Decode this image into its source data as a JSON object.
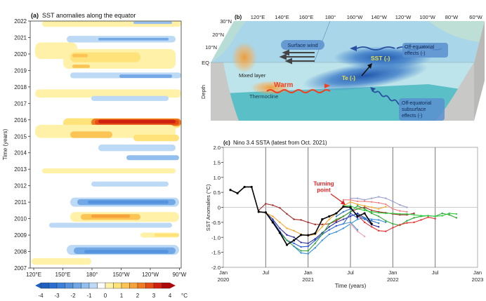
{
  "panel_a": {
    "title_tag": "(a)",
    "title": "SST anomalies along the equator",
    "ylabel": "Time (years)",
    "yticks": [
      "2022",
      "2021",
      "2020",
      "2019",
      "2018",
      "2017",
      "2016",
      "2015",
      "2014",
      "2013",
      "2012",
      "2011",
      "2010",
      "2009",
      "2008",
      "2007"
    ],
    "xticks": [
      "120°E",
      "150°E",
      "180°",
      "150°W",
      "120°W",
      "90°W"
    ],
    "colorbar": {
      "ticks": [
        "-4",
        "-3",
        "-2",
        "-1",
        "0",
        "1",
        "2",
        "3",
        "4"
      ],
      "unit": "°C",
      "colors": [
        "#1f5fbf",
        "#2a6fcf",
        "#3b80d9",
        "#5593df",
        "#72a8e6",
        "#93bfee",
        "#bcd9f5",
        "#ffffff",
        "#fff2a8",
        "#ffe27a",
        "#fcc455",
        "#f6a23a",
        "#ef7a22",
        "#e44d16",
        "#cf220e",
        "#b00808"
      ]
    }
  },
  "panel_b": {
    "title_tag": "(b)",
    "lon_labels": [
      "120°E",
      "140°E",
      "160°E",
      "180°",
      "160°W",
      "140°W",
      "120°W",
      "100°W",
      "80°W",
      "60°W"
    ],
    "lat_labels": [
      "30°N",
      "20°N",
      "10°N",
      "EQ"
    ],
    "depth_label": "Depth",
    "surface_wind": "Surface wind",
    "sst": "SST (-)",
    "off_eq_surface": [
      "Off-equatorial",
      "effects (-)"
    ],
    "mixed_layer": "Mixed layer",
    "warm": "Warm",
    "thermocline": "Thermocline",
    "te": "Te (-)",
    "off_eq_subsurface": [
      "Off-equatorial",
      "subsurface",
      "effects (-)"
    ],
    "colors": {
      "ocean_surface": "#a9d6e8",
      "ocean_body": "#5bbfc8",
      "land": "#c8c8c6",
      "cold": "#1a5fb4",
      "warm": "#f0a040",
      "label_box": "#5b8fcf"
    }
  },
  "chart_data": {
    "type": "line",
    "title_tag": "(c)",
    "title": "Nino 3.4 SSTA (latest from Oct. 2021)",
    "xlabel": "Time (years)",
    "ylabel": "SST Anomalies (°C)",
    "ylim": [
      -2.0,
      2.0
    ],
    "yticks": [
      "2.0",
      "1.5",
      "1.0",
      "0.5",
      "0",
      "-0.5",
      "-1.0",
      "-1.5",
      "-2.0"
    ],
    "xticks": [
      {
        "m": 0,
        "l1": "Jan",
        "l2": "2020"
      },
      {
        "m": 6,
        "l1": "Jul",
        "l2": ""
      },
      {
        "m": 12,
        "l1": "Jan",
        "l2": "2021"
      },
      {
        "m": 18,
        "l1": "Jul",
        "l2": ""
      },
      {
        "m": 24,
        "l1": "Jan",
        "l2": "2022"
      },
      {
        "m": 30,
        "l1": "Jul",
        "l2": ""
      },
      {
        "m": 36,
        "l1": "Jan",
        "l2": "2023"
      }
    ],
    "x_unit": "months since Jan 2020",
    "annotation": {
      "text": [
        "Turning",
        "point"
      ],
      "m": 17.4,
      "v": 0.05
    },
    "grid": "vertical lines at Jul/Jan; horizontal line at 0",
    "series": [
      {
        "name": "observed",
        "color": "#000000",
        "start": 1,
        "values": [
          0.58,
          0.47,
          0.68,
          0.68,
          -0.15,
          -0.17,
          -0.5,
          -0.85,
          -1.25,
          -1.1,
          -0.92,
          -0.93,
          -0.87,
          -0.4,
          -0.3,
          -0.2,
          0.02,
          0.0,
          -0.3,
          -0.2,
          -0.55
        ]
      },
      {
        "name": "fc-a",
        "color": "#a52a2a",
        "start": 5,
        "values": [
          -0.1,
          0.12,
          0.07,
          -0.02,
          -0.22,
          -0.4,
          -0.42,
          -0.5,
          -0.57,
          -0.57,
          -0.55,
          -0.45,
          -0.3,
          -0.15,
          -0.05,
          0.0,
          -0.1,
          -0.15,
          -0.18,
          -0.22,
          -0.25,
          -0.25,
          -0.2
        ]
      },
      {
        "name": "fc-b",
        "color": "#f4a830",
        "start": 5,
        "values": [
          -0.15,
          -0.18,
          -0.3,
          -0.5,
          -0.7,
          -0.78,
          -0.9,
          -0.95,
          -0.9,
          -0.65,
          -0.4,
          -0.2,
          0.05,
          0.18,
          0.1,
          0.05,
          0.0,
          -0.05,
          0.02
        ]
      },
      {
        "name": "fc-c",
        "color": "#3030a0",
        "start": 6,
        "values": [
          -0.17,
          -0.4,
          -0.7,
          -0.92,
          -1.0,
          -1.17,
          -1.2,
          -1.05,
          -0.85,
          -0.65,
          -0.5,
          -0.4,
          -0.3,
          -0.2,
          -0.35,
          -0.58,
          -0.65
        ]
      },
      {
        "name": "fc-d",
        "color": "#2a5ad8",
        "start": 7,
        "values": [
          -0.45,
          -0.8,
          -1.1,
          -1.2,
          -1.32,
          -1.3,
          -1.1,
          -0.9,
          -0.75,
          -0.62,
          -0.55,
          -0.2,
          -0.35
        ]
      },
      {
        "name": "fc-e",
        "color": "#31a836",
        "start": 8,
        "values": [
          -0.85,
          -1.1,
          -1.3,
          -1.45,
          -1.45,
          -1.2,
          -0.9,
          -0.55,
          -0.4,
          -0.3,
          -0.15,
          0.05,
          -0.05,
          -0.2,
          -0.3,
          -0.45,
          -0.55,
          -0.6,
          -0.45,
          -0.35,
          -0.3,
          -0.28,
          -0.3,
          -0.2,
          -0.25,
          -0.35
        ]
      },
      {
        "name": "fc-f",
        "color": "#3a8fe0",
        "start": 10,
        "values": [
          -1.3,
          -1.52,
          -1.55,
          -1.35,
          -1.1,
          -0.9,
          -0.82,
          -0.7,
          -0.55,
          -0.4,
          -0.35,
          -0.4,
          -0.42,
          -0.5
        ]
      },
      {
        "name": "fc-g",
        "color": "#e83030",
        "start": 19,
        "values": [
          -0.25,
          -0.5,
          -0.65,
          -0.78,
          -0.8,
          -0.68,
          -0.58,
          -0.52,
          -0.5,
          -0.42,
          -0.33,
          -0.38
        ]
      },
      {
        "name": "fc-h",
        "color": "#9aa0d0",
        "start": 18,
        "values": [
          0.3,
          0.3,
          0.25,
          0.3,
          0.35,
          0.3,
          0.2,
          0.08,
          0.0
        ]
      },
      {
        "name": "fc-i",
        "color": "#f08080",
        "start": 17,
        "values": [
          0.25,
          0.25,
          0.2,
          0.2,
          0.18,
          0.15,
          0.1,
          -0.05,
          -0.12,
          -0.15
        ]
      },
      {
        "name": "fc-j",
        "color": "#2ecc40",
        "start": 17,
        "values": [
          0.05,
          0.05,
          -0.05,
          -0.1,
          -0.15,
          -0.18,
          -0.2,
          -0.2,
          -0.22,
          -0.22,
          -0.25,
          -0.28,
          -0.28,
          -0.3,
          -0.28,
          -0.2,
          -0.22
        ]
      },
      {
        "name": "fc-k",
        "color": "#2a70c8",
        "start": 16,
        "values": [
          -0.3,
          -0.15,
          -0.05,
          -0.25,
          -0.4,
          -0.45,
          -0.53
        ]
      },
      {
        "name": "fc-l",
        "color": "#f4a0b0",
        "start": 18,
        "values": [
          -0.55,
          -0.8,
          -0.97
        ]
      },
      {
        "name": "fc-m",
        "color": "#4a9ad0",
        "start": 17,
        "values": [
          -0.55,
          -0.5,
          -0.75
        ]
      }
    ]
  }
}
